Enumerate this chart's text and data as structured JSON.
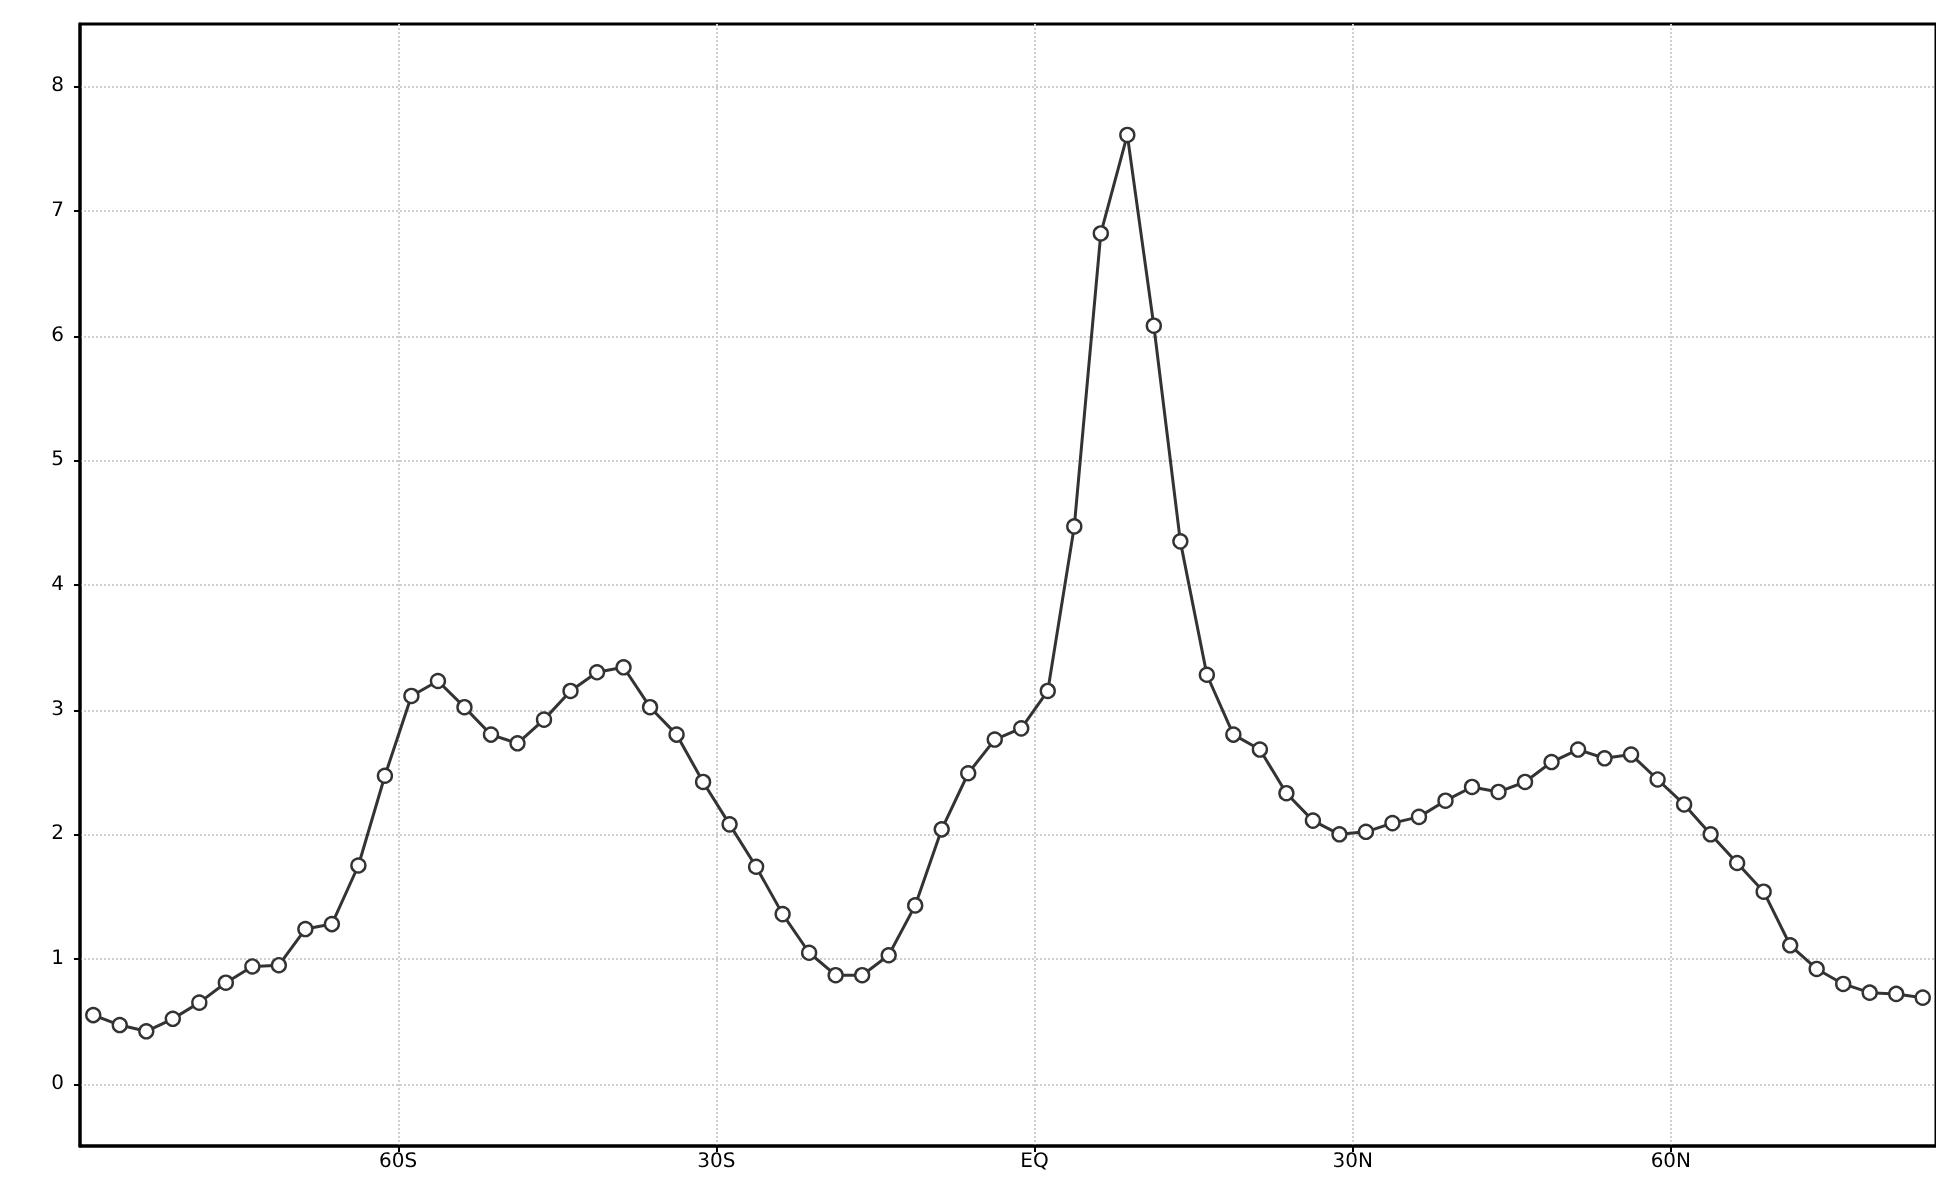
{
  "chart_data": {
    "type": "line",
    "x": [
      -88.75,
      -86.25,
      -83.75,
      -81.25,
      -78.75,
      -76.25,
      -73.75,
      -71.25,
      -68.75,
      -66.25,
      -63.75,
      -61.25,
      -58.75,
      -56.25,
      -53.75,
      -51.25,
      -48.75,
      -46.25,
      -43.75,
      -41.25,
      -38.75,
      -36.25,
      -33.75,
      -31.25,
      -28.75,
      -26.25,
      -23.75,
      -21.25,
      -18.75,
      -16.25,
      -13.75,
      -11.25,
      -8.75,
      -6.25,
      -3.75,
      -1.25,
      1.25,
      3.75,
      6.25,
      8.75,
      11.25,
      13.75,
      16.25,
      18.75,
      21.25,
      23.75,
      26.25,
      28.75,
      31.25,
      33.75,
      36.25,
      38.75,
      41.25,
      43.75,
      46.25,
      48.75,
      51.25,
      53.75,
      56.25,
      58.75,
      61.25,
      63.75,
      66.25,
      68.75,
      71.25,
      73.75,
      76.25,
      78.75,
      81.25,
      83.75
    ],
    "series": [
      {
        "color": "#333333",
        "values": [
          0.55,
          0.47,
          0.42,
          0.52,
          0.65,
          0.81,
          0.94,
          0.95,
          1.24,
          1.28,
          1.75,
          2.47,
          3.11,
          3.23,
          3.02,
          2.8,
          2.73,
          2.92,
          3.15,
          3.3,
          3.34,
          3.02,
          2.8,
          2.42,
          2.08,
          1.74,
          1.36,
          1.05,
          0.87,
          0.87,
          1.03,
          1.43,
          2.04,
          2.49,
          2.76,
          2.85,
          3.15,
          4.47,
          6.82,
          7.61,
          6.08,
          4.35,
          3.28,
          2.8,
          2.68,
          2.33,
          2.11,
          2.0,
          2.02,
          2.09,
          2.14,
          2.27,
          2.38,
          2.34,
          2.42,
          2.58,
          2.68,
          2.61,
          2.64,
          2.44,
          2.24,
          2.0,
          1.77,
          1.54,
          1.11,
          0.92,
          0.8,
          0.73,
          0.72,
          0.69
        ]
      }
    ],
    "xlim": [
      -90,
      85
    ],
    "xticks": [
      {
        "value": -60,
        "label": "60S"
      },
      {
        "value": -30,
        "label": "30S"
      },
      {
        "value": 0,
        "label": "EQ"
      },
      {
        "value": 30,
        "label": "30N"
      },
      {
        "value": 60,
        "label": "60N"
      }
    ],
    "ylim": [
      -0.5,
      8.5
    ],
    "yticks": [
      0,
      1,
      2,
      3,
      4,
      5,
      6,
      7,
      8
    ],
    "grid": true,
    "marker": "circle",
    "line_style": "solid"
  }
}
